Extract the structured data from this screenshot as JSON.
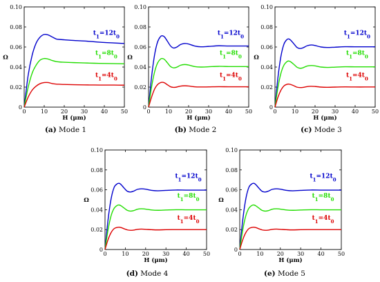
{
  "chart_data": [
    {
      "type": "line",
      "caption_label": "(a)",
      "caption_text": "Mode 1",
      "xlabel": "H (μm)",
      "ylabel": "Ω",
      "xlim": [
        0,
        50
      ],
      "ylim": [
        0,
        0.1
      ],
      "xticks": [
        0,
        10,
        20,
        30,
        40,
        50
      ],
      "yticks": [
        0,
        0.02,
        0.04,
        0.06,
        0.08,
        0.1
      ],
      "ytick_labels": [
        "0",
        "0.02",
        "0.04",
        "0.06",
        "0.08",
        "0.10"
      ],
      "series": [
        {
          "name": "t1=12t0",
          "color": "#0000cc",
          "x": [
            0,
            2,
            4,
            6,
            8,
            10,
            12,
            14,
            16,
            18,
            20,
            25,
            30,
            35,
            40,
            45,
            50
          ],
          "y": [
            0,
            0.032,
            0.052,
            0.064,
            0.07,
            0.0725,
            0.072,
            0.07,
            0.068,
            0.0675,
            0.0672,
            0.0665,
            0.066,
            0.0652,
            0.0645,
            0.064,
            0.0635
          ]
        },
        {
          "name": "t1=8t0",
          "color": "#22dd00",
          "x": [
            0,
            2,
            4,
            6,
            8,
            10,
            12,
            14,
            16,
            18,
            20,
            25,
            30,
            35,
            40,
            45,
            50
          ],
          "y": [
            0,
            0.02,
            0.034,
            0.042,
            0.047,
            0.0485,
            0.048,
            0.0465,
            0.0455,
            0.045,
            0.0448,
            0.0444,
            0.0441,
            0.0438,
            0.0436,
            0.0434,
            0.0432
          ]
        },
        {
          "name": "t1=4t0",
          "color": "#dd0000",
          "x": [
            0,
            2,
            4,
            6,
            8,
            10,
            12,
            14,
            16,
            18,
            20,
            25,
            30,
            35,
            40,
            45,
            50
          ],
          "y": [
            0,
            0.01,
            0.017,
            0.021,
            0.0235,
            0.0245,
            0.0245,
            0.0235,
            0.023,
            0.0228,
            0.0226,
            0.0224,
            0.0222,
            0.0221,
            0.022,
            0.022,
            0.0219
          ]
        }
      ]
    },
    {
      "type": "line",
      "caption_label": "(b)",
      "caption_text": "Mode 2",
      "xlabel": "H (μm)",
      "ylabel": "Ω",
      "xlim": [
        0,
        50
      ],
      "ylim": [
        0,
        0.1
      ],
      "xticks": [
        0,
        10,
        20,
        30,
        40,
        50
      ],
      "yticks": [
        0,
        0.02,
        0.04,
        0.06,
        0.08,
        0.1
      ],
      "ytick_labels": [
        "0",
        "0.02",
        "0.04",
        "0.06",
        "0.08",
        "0.10"
      ],
      "series": [
        {
          "name": "t1=12t0",
          "color": "#0000cc",
          "x": [
            0,
            1.5,
            3,
            4.5,
            6,
            7,
            8,
            9.5,
            11,
            12.5,
            14,
            16,
            18,
            20,
            23,
            26,
            30,
            35,
            40,
            45,
            50
          ],
          "y": [
            0,
            0.03,
            0.052,
            0.065,
            0.0705,
            0.0712,
            0.07,
            0.0655,
            0.061,
            0.059,
            0.0598,
            0.0625,
            0.0635,
            0.063,
            0.061,
            0.0602,
            0.0606,
            0.0612,
            0.061,
            0.061,
            0.061
          ]
        },
        {
          "name": "t1=8t0",
          "color": "#22dd00",
          "x": [
            0,
            1.5,
            3,
            4.5,
            6,
            7,
            8,
            9.5,
            11,
            12.5,
            14,
            16,
            18,
            20,
            23,
            26,
            30,
            35,
            40,
            45,
            50
          ],
          "y": [
            0,
            0.02,
            0.035,
            0.044,
            0.048,
            0.0485,
            0.0475,
            0.044,
            0.0405,
            0.0392,
            0.0398,
            0.0418,
            0.0425,
            0.042,
            0.0405,
            0.04,
            0.0403,
            0.0407,
            0.0405,
            0.0405,
            0.0405
          ]
        },
        {
          "name": "t1=4t0",
          "color": "#dd0000",
          "x": [
            0,
            1.5,
            3,
            4.5,
            6,
            7,
            8,
            9.5,
            11,
            12.5,
            14,
            16,
            18,
            20,
            23,
            26,
            30,
            35,
            40,
            45,
            50
          ],
          "y": [
            0,
            0.01,
            0.018,
            0.0225,
            0.0245,
            0.0248,
            0.0242,
            0.0222,
            0.0203,
            0.0197,
            0.02,
            0.021,
            0.0213,
            0.0211,
            0.0203,
            0.0201,
            0.0202,
            0.0204,
            0.0203,
            0.0203,
            0.0203
          ]
        }
      ]
    },
    {
      "type": "line",
      "caption_label": "(c)",
      "caption_text": "Mode 3",
      "xlabel": "H (μm)",
      "ylabel": "Ω",
      "xlim": [
        0,
        50
      ],
      "ylim": [
        0,
        0.1
      ],
      "xticks": [
        0,
        10,
        20,
        30,
        40,
        50
      ],
      "yticks": [
        0,
        0.02,
        0.04,
        0.06,
        0.08,
        0.1
      ],
      "ytick_labels": [
        "0",
        "0.02",
        "0.04",
        "0.06",
        "0.08",
        "0.10"
      ],
      "series": [
        {
          "name": "t1=12t0",
          "color": "#0000cc",
          "x": [
            0,
            1.5,
            3,
            4.5,
            6,
            7,
            8,
            9.5,
            11,
            12.5,
            14,
            16,
            18,
            20,
            23,
            26,
            30,
            35,
            40,
            45,
            50
          ],
          "y": [
            0,
            0.03,
            0.051,
            0.063,
            0.0675,
            0.068,
            0.0665,
            0.063,
            0.0595,
            0.0585,
            0.0592,
            0.0612,
            0.062,
            0.0615,
            0.06,
            0.0595,
            0.0598,
            0.0603,
            0.0602,
            0.0602,
            0.0602
          ]
        },
        {
          "name": "t1=8t0",
          "color": "#22dd00",
          "x": [
            0,
            1.5,
            3,
            4.5,
            6,
            7,
            8,
            9.5,
            11,
            12.5,
            14,
            16,
            18,
            20,
            23,
            26,
            30,
            35,
            40,
            45,
            50
          ],
          "y": [
            0,
            0.02,
            0.034,
            0.042,
            0.0455,
            0.046,
            0.045,
            0.0425,
            0.0398,
            0.0388,
            0.0393,
            0.041,
            0.0415,
            0.0412,
            0.04,
            0.0396,
            0.0399,
            0.0403,
            0.0402,
            0.0402,
            0.0402
          ]
        },
        {
          "name": "t1=4t0",
          "color": "#dd0000",
          "x": [
            0,
            1.5,
            3,
            4.5,
            6,
            7,
            8,
            9.5,
            11,
            12.5,
            14,
            16,
            18,
            20,
            23,
            26,
            30,
            35,
            40,
            45,
            50
          ],
          "y": [
            0,
            0.01,
            0.017,
            0.0212,
            0.0228,
            0.023,
            0.0225,
            0.0213,
            0.0199,
            0.0195,
            0.0197,
            0.0205,
            0.0208,
            0.0206,
            0.02,
            0.0198,
            0.02,
            0.0202,
            0.0201,
            0.0201,
            0.0201
          ]
        }
      ]
    },
    {
      "type": "line",
      "caption_label": "(d)",
      "caption_text": "Mode 4",
      "xlabel": "H (μm)",
      "ylabel": "Ω",
      "xlim": [
        0,
        50
      ],
      "ylim": [
        0,
        0.1
      ],
      "xticks": [
        0,
        10,
        20,
        30,
        40,
        50
      ],
      "yticks": [
        0,
        0.02,
        0.04,
        0.06,
        0.08,
        0.1
      ],
      "ytick_labels": [
        "0",
        "0.02",
        "0.04",
        "0.06",
        "0.08",
        "0.10"
      ],
      "series": [
        {
          "name": "t1=12t0",
          "color": "#0000cc",
          "x": [
            0,
            1.5,
            3,
            4.5,
            6,
            7,
            8,
            9.5,
            11,
            12.5,
            14,
            16,
            18,
            20,
            23,
            26,
            30,
            35,
            40,
            45,
            50
          ],
          "y": [
            0,
            0.03,
            0.051,
            0.0625,
            0.066,
            0.0665,
            0.065,
            0.0615,
            0.0585,
            0.0578,
            0.0586,
            0.0605,
            0.061,
            0.0606,
            0.0594,
            0.059,
            0.0594,
            0.0598,
            0.0597,
            0.0597,
            0.0597
          ]
        },
        {
          "name": "t1=8t0",
          "color": "#22dd00",
          "x": [
            0,
            1.5,
            3,
            4.5,
            6,
            7,
            8,
            9.5,
            11,
            12.5,
            14,
            16,
            18,
            20,
            23,
            26,
            30,
            35,
            40,
            45,
            50
          ],
          "y": [
            0,
            0.02,
            0.034,
            0.0415,
            0.0443,
            0.0447,
            0.0438,
            0.0415,
            0.0393,
            0.0386,
            0.039,
            0.0405,
            0.0409,
            0.0406,
            0.0397,
            0.0394,
            0.0397,
            0.04,
            0.0399,
            0.0399,
            0.0399
          ]
        },
        {
          "name": "t1=4t0",
          "color": "#dd0000",
          "x": [
            0,
            1.5,
            3,
            4.5,
            6,
            7,
            8,
            9.5,
            11,
            12.5,
            14,
            16,
            18,
            20,
            23,
            26,
            30,
            35,
            40,
            45,
            50
          ],
          "y": [
            0,
            0.01,
            0.017,
            0.021,
            0.0222,
            0.0224,
            0.022,
            0.0208,
            0.0197,
            0.0193,
            0.0195,
            0.0203,
            0.0205,
            0.0203,
            0.0199,
            0.0197,
            0.0199,
            0.02,
            0.02,
            0.02,
            0.02
          ]
        }
      ]
    },
    {
      "type": "line",
      "caption_label": "(e)",
      "caption_text": "Mode 5",
      "xlabel": "H (μm)",
      "ylabel": "Ω",
      "xlim": [
        0,
        50
      ],
      "ylim": [
        0,
        0.1
      ],
      "xticks": [
        0,
        10,
        20,
        30,
        40,
        50
      ],
      "yticks": [
        0,
        0.02,
        0.04,
        0.06,
        0.08,
        0.1
      ],
      "ytick_labels": [
        "0",
        "0.02",
        "0.04",
        "0.06",
        "0.08",
        "0.10"
      ],
      "series": [
        {
          "name": "t1=12t0",
          "color": "#0000cc",
          "x": [
            0,
            1.5,
            3,
            4.5,
            6,
            7,
            8,
            9.5,
            11,
            12.5,
            14,
            16,
            18,
            20,
            23,
            26,
            30,
            35,
            40,
            45,
            50
          ],
          "y": [
            0,
            0.03,
            0.051,
            0.0625,
            0.066,
            0.0665,
            0.065,
            0.0615,
            0.0585,
            0.0578,
            0.0586,
            0.0605,
            0.061,
            0.0606,
            0.0594,
            0.059,
            0.0594,
            0.0598,
            0.0597,
            0.0597,
            0.0597
          ]
        },
        {
          "name": "t1=8t0",
          "color": "#22dd00",
          "x": [
            0,
            1.5,
            3,
            4.5,
            6,
            7,
            8,
            9.5,
            11,
            12.5,
            14,
            16,
            18,
            20,
            23,
            26,
            30,
            35,
            40,
            45,
            50
          ],
          "y": [
            0,
            0.02,
            0.034,
            0.0415,
            0.0443,
            0.0447,
            0.0438,
            0.0415,
            0.0393,
            0.0386,
            0.039,
            0.0405,
            0.0409,
            0.0406,
            0.0397,
            0.0394,
            0.0397,
            0.04,
            0.0399,
            0.0399,
            0.0399
          ]
        },
        {
          "name": "t1=4t0",
          "color": "#dd0000",
          "x": [
            0,
            1.5,
            3,
            4.5,
            6,
            7,
            8,
            9.5,
            11,
            12.5,
            14,
            16,
            18,
            20,
            23,
            26,
            30,
            35,
            40,
            45,
            50
          ],
          "y": [
            0,
            0.01,
            0.017,
            0.021,
            0.0222,
            0.0224,
            0.022,
            0.0208,
            0.0197,
            0.0193,
            0.0195,
            0.0203,
            0.0205,
            0.0203,
            0.0199,
            0.0197,
            0.0199,
            0.02,
            0.02,
            0.02,
            0.02
          ]
        }
      ]
    }
  ]
}
